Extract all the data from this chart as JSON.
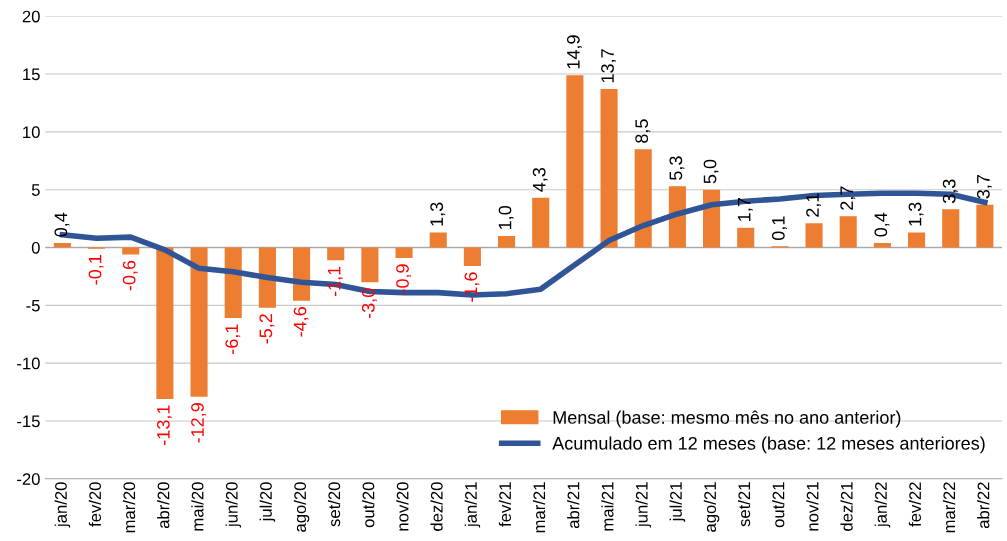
{
  "chart_data": {
    "type": "bar",
    "categories": [
      "jan/20",
      "fev/20",
      "mar/20",
      "abr/20",
      "mai/20",
      "jun/20",
      "jul/20",
      "ago/20",
      "set/20",
      "out/20",
      "nov/20",
      "dez/20",
      "jan/21",
      "fev/21",
      "mar/21",
      "abr/21",
      "mai/21",
      "jun/21",
      "jul/21",
      "ago/21",
      "set/21",
      "out/21",
      "nov/21",
      "dez/21",
      "jan/22",
      "fev/22",
      "mar/22",
      "abr/22"
    ],
    "series": [
      {
        "name": "Mensal (base: mesmo mês no ano anterior)",
        "color": "#ed7d31",
        "values": [
          0.4,
          -0.1,
          -0.6,
          -13.1,
          -12.9,
          -6.1,
          -5.2,
          -4.6,
          -1.1,
          -3.0,
          -0.9,
          1.3,
          -1.6,
          1.0,
          4.3,
          14.9,
          13.7,
          8.5,
          5.3,
          5.0,
          1.7,
          0.1,
          2.1,
          2.7,
          0.4,
          1.3,
          3.3,
          3.7
        ],
        "value_labels": [
          "0,4",
          "-0,1",
          "-0,6",
          "-13,1",
          "-12,9",
          "-6,1",
          "-5,2",
          "-4,6",
          "-1,1",
          "-3,0",
          "-0,9",
          "1,3",
          "-1,6",
          "1,0",
          "4,3",
          "14,9",
          "13,7",
          "8,5",
          "5,3",
          "5,0",
          "1,7",
          "0,1",
          "2,1",
          "2,7",
          "0,4",
          "1,3",
          "3,3",
          "3,7"
        ]
      },
      {
        "name": "Acumulado em 12 meses (base: 12 meses anteriores)",
        "type": "line",
        "color": "#2f5597",
        "values": [
          1.1,
          0.8,
          0.9,
          -0.2,
          -1.8,
          -2.1,
          -2.6,
          -3.0,
          -3.2,
          -3.8,
          -3.9,
          -3.9,
          -4.1,
          -4.0,
          -3.6,
          -1.5,
          0.6,
          1.9,
          2.9,
          3.7,
          4.0,
          4.2,
          4.5,
          4.6,
          4.7,
          4.7,
          4.6,
          3.9
        ]
      }
    ],
    "ylim": [
      -20,
      20
    ],
    "yticks": [
      -20,
      -15,
      -10,
      -5,
      0,
      5,
      10,
      15,
      20
    ],
    "grid": "y",
    "legend": "bottom right",
    "marker": "none",
    "line_style": "solid"
  }
}
